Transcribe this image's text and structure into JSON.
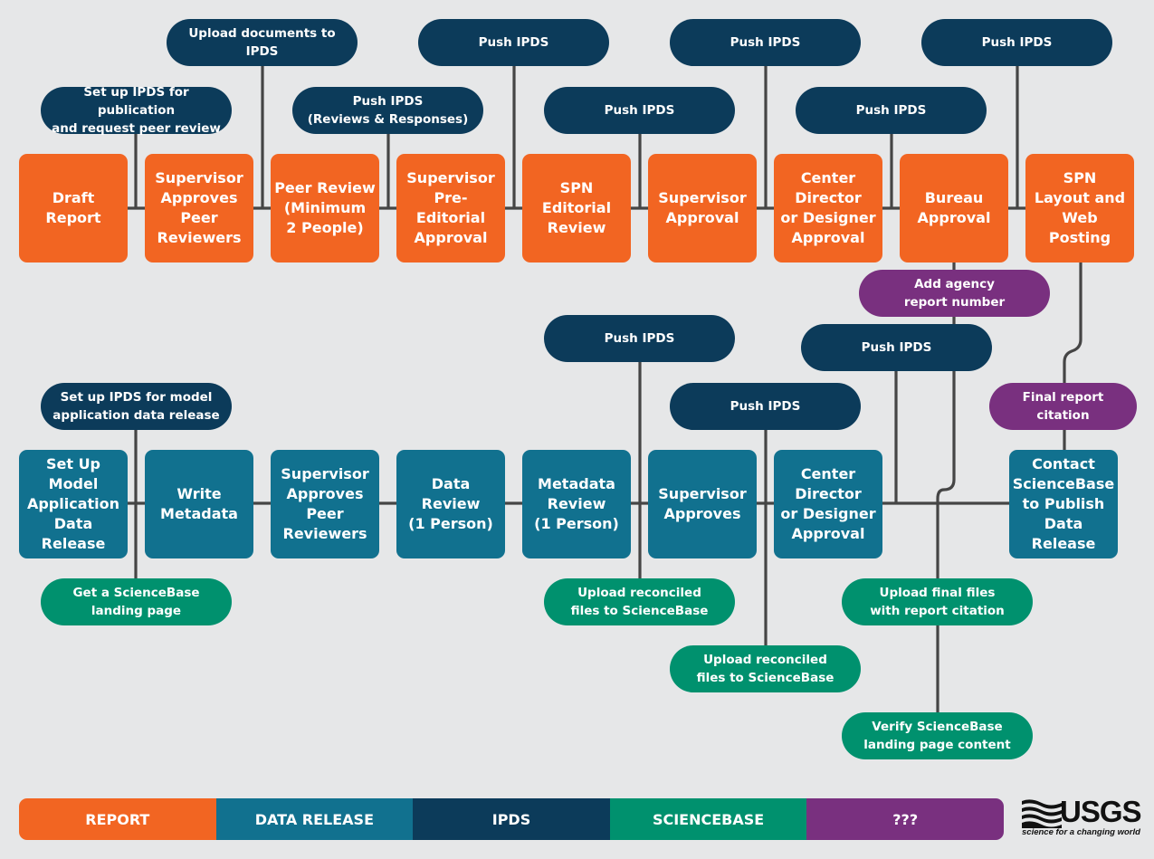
{
  "report_row": {
    "steps": [
      "Draft\nReport",
      "Supervisor\nApproves\nPeer\nReviewers",
      "Peer Review\n(Minimum\n2 People)",
      "Supervisor\nPre-Editorial\nApproval",
      "SPN\nEditorial\nReview",
      "Supervisor\nApproval",
      "Center\nDirector\nor Designer\nApproval",
      "Bureau\nApproval",
      "SPN\nLayout and\nWeb Posting"
    ],
    "ipds_notes": [
      "Set up IPDS for publication\nand request peer review",
      "Upload documents to IPDS",
      "Push IPDS\n(Reviews & Responses)",
      "Push IPDS",
      "Push IPDS",
      "Push IPDS",
      "Push IPDS",
      "Push IPDS"
    ],
    "other_notes": [
      "Add agency\nreport number"
    ]
  },
  "data_row": {
    "steps": [
      "Set Up Model\nApplication\nData Release",
      "Write\nMetadata",
      "Supervisor\nApproves\nPeer\nReviewers",
      "Data Review\n(1 Person)",
      "Metadata\nReview\n(1 Person)",
      "Supervisor\nApproves",
      "Center\nDirector\nor Designer\nApproval",
      "Contact\nScienceBase\nto Publish\nData Release"
    ],
    "ipds_notes": [
      "Set up IPDS for model\napplication data release",
      "Push IPDS",
      "Push IPDS",
      "Push IPDS",
      "Final report citation"
    ],
    "sciencebase_notes": [
      "Get a ScienceBase\nlanding page",
      "Upload reconciled\nfiles to ScienceBase",
      "Upload reconciled\nfiles to ScienceBase",
      "Upload final files\nwith report citation",
      "Verify ScienceBase\nlanding page content"
    ]
  },
  "legend": [
    "REPORT",
    "DATA RELEASE",
    "IPDS",
    "SCIENCEBASE",
    "???"
  ],
  "colors": {
    "report": "#f26522",
    "data_release": "#11718f",
    "ipds": "#0c3b5a",
    "sciencebase": "#00916e",
    "unknown": "#79307f",
    "connector": "#454545",
    "background": "#e6e7e8"
  },
  "logo": {
    "wordmark": "USGS",
    "tagline": "science for a changing world"
  }
}
